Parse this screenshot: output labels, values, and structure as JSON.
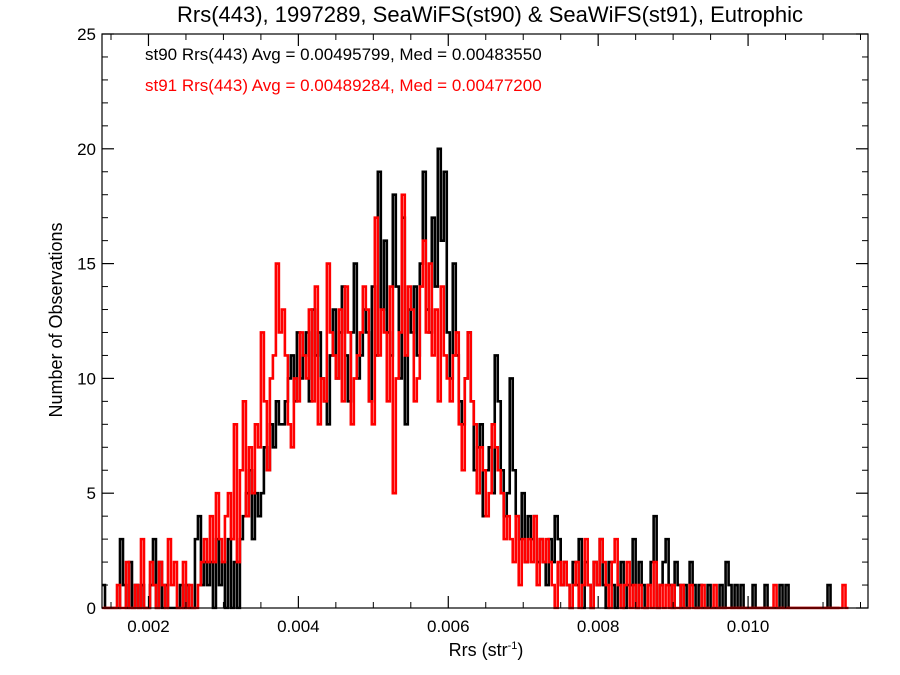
{
  "chart_data": {
    "type": "histogram-step",
    "title": "Rrs(443), 1997289, SeaWiFS(st90) & SeaWiFS(st91), Eutrophic",
    "xlabel": "Rrs (str",
    "xlabel_sup": "-1",
    "xlabel_end": ")",
    "ylabel": "Number of Observations",
    "xlim": [
      0.00138,
      0.0116
    ],
    "ylim": [
      0,
      25
    ],
    "xticks": [
      0.002,
      0.004,
      0.006,
      0.008,
      0.01
    ],
    "xtick_labels": [
      "0.002",
      "0.004",
      "0.006",
      "0.008",
      "0.010"
    ],
    "yticks": [
      0,
      5,
      10,
      15,
      20,
      25
    ],
    "ytick_labels": [
      "0",
      "5",
      "10",
      "15",
      "20",
      "25"
    ],
    "bin_start": 0.00138,
    "bin_width": 4e-05,
    "legend_placement": "top-left",
    "series": [
      {
        "label": "st90 Rrs(443) Avg = 0.00495799, Med = 0.00483550",
        "color": "#000000",
        "counts": [
          1,
          0,
          0,
          0,
          0,
          0,
          3,
          1,
          0,
          2,
          0,
          1,
          0,
          1,
          0,
          0,
          1,
          3,
          0,
          2,
          0,
          1,
          0,
          0,
          0,
          0,
          1,
          0,
          1,
          0,
          0,
          3,
          4,
          1,
          2,
          1,
          2,
          0,
          3,
          1,
          2,
          0,
          3,
          0,
          2,
          0,
          3,
          4,
          5,
          6,
          3,
          5,
          4,
          5,
          7,
          6,
          8,
          7,
          9,
          8,
          8,
          9,
          10,
          11,
          9,
          12,
          10,
          11,
          12,
          9,
          13,
          11,
          12,
          10,
          9,
          8,
          11,
          13,
          10,
          12,
          14,
          11,
          9,
          12,
          15,
          10,
          11,
          13,
          12,
          9,
          14,
          11,
          19,
          13,
          16,
          12,
          11,
          18,
          14,
          10,
          17,
          8,
          13,
          12,
          14,
          11,
          15,
          19,
          13,
          12,
          17,
          14,
          20,
          16,
          19,
          12,
          10,
          15,
          11,
          9,
          8,
          10,
          12,
          9,
          6,
          7,
          8,
          4,
          6,
          7,
          5,
          11,
          9,
          6,
          4,
          5,
          10,
          6,
          4,
          3,
          5,
          2,
          4,
          3,
          4,
          2,
          3,
          2,
          1,
          3,
          2,
          4,
          3,
          1,
          2,
          1,
          0,
          2,
          1,
          3,
          0,
          2,
          1,
          0,
          2,
          1,
          3,
          1,
          0,
          2,
          1,
          0,
          1,
          2,
          0,
          1,
          1,
          3,
          0,
          2,
          1,
          0,
          1,
          2,
          4,
          0,
          1,
          2,
          3,
          1,
          0,
          2,
          1,
          0,
          1,
          0,
          2,
          1,
          0,
          1,
          0,
          0,
          1,
          0,
          0,
          0,
          1,
          0,
          2,
          1,
          0,
          1,
          0,
          1,
          0,
          0,
          0,
          1,
          0,
          0,
          0,
          1,
          0,
          0,
          0,
          0,
          1,
          0,
          1,
          0,
          0,
          0,
          0,
          0,
          0,
          0,
          0,
          0,
          0,
          0,
          0,
          0,
          1,
          0,
          0,
          0
        ]
      },
      {
        "label": "st91 Rrs(443) Avg = 0.00489284, Med = 0.00477200",
        "color": "#ff0000",
        "counts": [
          0,
          0,
          0,
          0,
          0,
          1,
          0,
          0,
          2,
          0,
          0,
          1,
          0,
          3,
          0,
          0,
          2,
          1,
          0,
          2,
          1,
          0,
          3,
          1,
          2,
          0,
          0,
          2,
          0,
          1,
          0,
          0,
          1,
          2,
          3,
          2,
          4,
          2,
          5,
          3,
          2,
          4,
          5,
          3,
          8,
          2,
          6,
          9,
          4,
          7,
          5,
          8,
          7,
          12,
          9,
          6,
          10,
          11,
          15,
          12,
          13,
          11,
          8,
          7,
          10,
          9,
          12,
          11,
          10,
          13,
          9,
          14,
          8,
          10,
          9,
          15,
          12,
          11,
          10,
          13,
          9,
          14,
          12,
          8,
          10,
          11,
          12,
          14,
          13,
          9,
          8,
          17,
          11,
          13,
          12,
          9,
          14,
          5,
          10,
          12,
          18,
          11,
          14,
          13,
          9,
          10,
          14,
          16,
          12,
          15,
          11,
          13,
          9,
          14,
          11,
          10,
          9,
          11,
          12,
          8,
          6,
          10,
          12,
          9,
          8,
          5,
          7,
          6,
          4,
          5,
          8,
          7,
          6,
          5,
          3,
          4,
          3,
          2,
          4,
          1,
          3,
          2,
          3,
          2,
          4,
          1,
          3,
          2,
          3,
          2,
          1,
          0,
          2,
          1,
          2,
          1,
          0,
          1,
          2,
          0,
          1,
          3,
          1,
          0,
          2,
          1,
          3,
          2,
          1,
          0,
          2,
          3,
          1,
          0,
          1,
          2,
          0,
          1,
          0,
          1,
          0,
          0,
          1,
          0,
          2,
          0,
          1,
          0,
          1,
          0,
          1,
          0,
          0,
          1,
          0,
          0,
          1,
          0,
          0,
          0,
          1,
          0,
          0,
          0,
          1,
          0,
          0,
          0,
          0,
          0,
          0,
          0,
          0,
          0,
          0,
          0,
          0,
          0,
          0,
          0,
          0,
          0,
          0,
          0,
          1,
          0,
          0,
          0,
          0,
          0,
          0,
          0,
          0,
          0,
          0,
          0,
          0,
          0,
          0,
          0,
          0,
          0,
          0,
          0,
          0,
          0,
          0,
          1,
          0
        ]
      }
    ]
  }
}
